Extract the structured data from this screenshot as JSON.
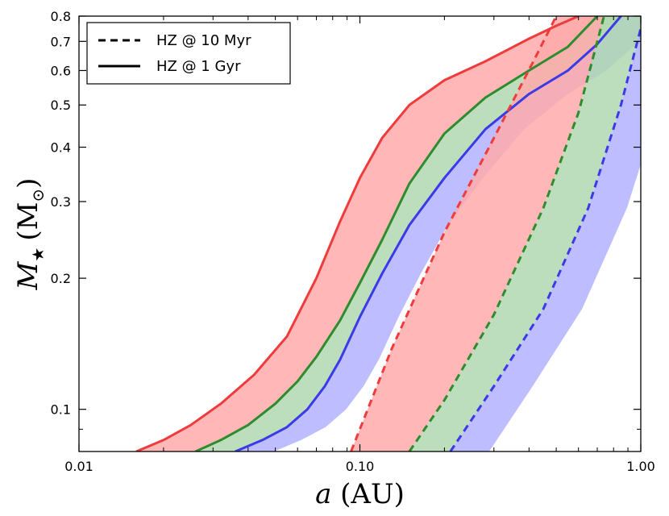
{
  "chart_data": {
    "type": "area",
    "title": "",
    "xlabel_main": "a",
    "xlabel_unit": "(AU)",
    "ylabel_main": "M",
    "ylabel_sub": "★",
    "ylabel_unit": "(M",
    "ylabel_unit_sub": "⊙",
    "ylabel_unit_close": ")",
    "xscale": "log",
    "yscale": "log",
    "xlim": [
      0.01,
      1.0
    ],
    "ylim": [
      0.08,
      0.8
    ],
    "x_ticks": [
      {
        "value": 0.01,
        "label": "0.01"
      },
      {
        "value": 0.1,
        "label": "0.10"
      },
      {
        "value": 1.0,
        "label": "1.00"
      }
    ],
    "y_ticks": [
      {
        "value": 0.1,
        "label": "0.1"
      },
      {
        "value": 0.2,
        "label": "0.2"
      },
      {
        "value": 0.3,
        "label": "0.3"
      },
      {
        "value": 0.4,
        "label": "0.4"
      },
      {
        "value": 0.5,
        "label": "0.5"
      },
      {
        "value": 0.6,
        "label": "0.6"
      },
      {
        "value": 0.7,
        "label": "0.7"
      },
      {
        "value": 0.8,
        "label": "0.8"
      }
    ],
    "legend": {
      "position": "top-left",
      "entries": [
        {
          "label": "HZ @ 10 Myr",
          "style": "dashed"
        },
        {
          "label": "HZ @ 1 Gyr",
          "style": "solid"
        }
      ]
    },
    "colors": {
      "red": "#ef3b3b",
      "green": "#2e8b2e",
      "blue": "#3a3ae6",
      "red_fill": "#ffaaaa",
      "green_fill": "#b0d8b0",
      "blue_fill": "#b2b2ff"
    },
    "y_grid": [
      0.08,
      0.09,
      0.1,
      0.12,
      0.15,
      0.2,
      0.25,
      0.3,
      0.35,
      0.4,
      0.5,
      0.6,
      0.7,
      0.8
    ],
    "series": [
      {
        "name": "red 1 Gyr edge",
        "style": "solid",
        "color": "red",
        "x": [
          0.016,
          0.02,
          0.025,
          0.032,
          0.042,
          0.055,
          0.07,
          0.085,
          0.1,
          0.12,
          0.15,
          0.2,
          0.28,
          0.4,
          0.5,
          0.6
        ],
        "y": [
          0.08,
          0.085,
          0.092,
          0.103,
          0.12,
          0.147,
          0.2,
          0.27,
          0.34,
          0.42,
          0.5,
          0.57,
          0.63,
          0.71,
          0.76,
          0.8
        ]
      },
      {
        "name": "green 1 Gyr edge",
        "style": "solid",
        "color": "green",
        "x": [
          0.026,
          0.032,
          0.04,
          0.05,
          0.06,
          0.07,
          0.085,
          0.1,
          0.12,
          0.15,
          0.2,
          0.28,
          0.4,
          0.55,
          0.7
        ],
        "y": [
          0.08,
          0.085,
          0.092,
          0.103,
          0.116,
          0.132,
          0.16,
          0.195,
          0.245,
          0.33,
          0.43,
          0.52,
          0.6,
          0.68,
          0.8
        ]
      },
      {
        "name": "blue 1 Gyr edge",
        "style": "solid",
        "color": "blue",
        "x": [
          0.036,
          0.045,
          0.055,
          0.065,
          0.075,
          0.085,
          0.1,
          0.12,
          0.15,
          0.2,
          0.28,
          0.4,
          0.55,
          0.7,
          0.85
        ],
        "y": [
          0.08,
          0.085,
          0.091,
          0.1,
          0.113,
          0.13,
          0.163,
          0.205,
          0.265,
          0.34,
          0.44,
          0.53,
          0.6,
          0.69,
          0.8
        ]
      },
      {
        "name": "red 10 Myr edge",
        "style": "dashed",
        "color": "red",
        "x": [
          0.093,
          0.13,
          0.2,
          0.3,
          0.42,
          0.5
        ],
        "y": [
          0.08,
          0.138,
          0.255,
          0.42,
          0.64,
          0.8
        ]
      },
      {
        "name": "green 10 Myr edge",
        "style": "dashed",
        "color": "green",
        "x": [
          0.15,
          0.2,
          0.3,
          0.45,
          0.6,
          0.74
        ],
        "y": [
          0.08,
          0.105,
          0.165,
          0.29,
          0.48,
          0.8
        ]
      },
      {
        "name": "blue 10 Myr edge",
        "style": "dashed",
        "color": "blue",
        "x": [
          0.21,
          0.3,
          0.45,
          0.65,
          0.85,
          1.0
        ],
        "y": [
          0.08,
          0.113,
          0.17,
          0.29,
          0.5,
          0.75
        ]
      }
    ],
    "bands": [
      {
        "name": "red band 1 Gyr",
        "fill": "red_fill",
        "left": "red 1 Gyr edge",
        "right": "green 1 Gyr edge"
      },
      {
        "name": "green band 1 Gyr",
        "fill": "green_fill",
        "left": "green 1 Gyr edge",
        "right": "blue 1 Gyr edge"
      },
      {
        "name": "blue band 1 Gyr",
        "fill": "blue_fill",
        "left": "blue 1 Gyr edge",
        "right": "blue 1 Gyr edge"
      },
      {
        "name": "red band 10 Myr",
        "fill": "red_fill",
        "left": "red 10 Myr edge",
        "right": "green 10 Myr edge"
      },
      {
        "name": "green band 10 Myr",
        "fill": "green_fill",
        "left": "green 10 Myr edge",
        "right": "blue 10 Myr edge"
      },
      {
        "name": "blue band 10 Myr",
        "fill": "blue_fill",
        "left": "blue 10 Myr edge",
        "right": "blue 10 Myr edge"
      }
    ]
  }
}
